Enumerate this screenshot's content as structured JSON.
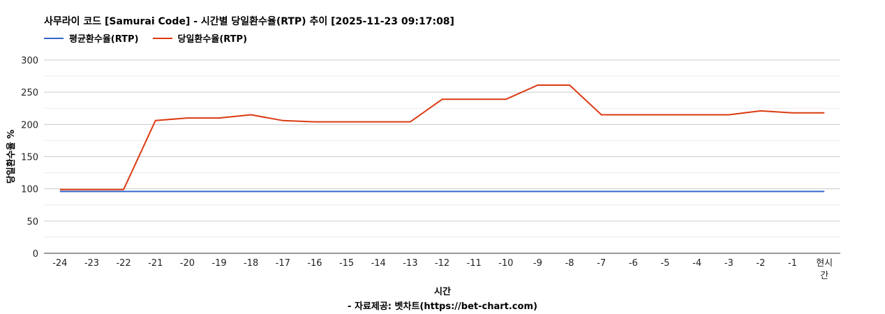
{
  "chart_data": {
    "type": "line",
    "title": "사무라이 코드 [Samurai Code] - 시간별 당일환수율(RTP) 추이 [2025-11-23 09:17:08]",
    "xlabel": "시간",
    "ylabel": "당일환수율 %",
    "source": "- 자료제공: 벳차트(https://bet-chart.com)",
    "categories": [
      "-24",
      "-23",
      "-22",
      "-21",
      "-20",
      "-19",
      "-18",
      "-17",
      "-16",
      "-15",
      "-14",
      "-13",
      "-12",
      "-11",
      "-10",
      "-9",
      "-8",
      "-7",
      "-6",
      "-5",
      "-4",
      "-3",
      "-2",
      "-1",
      "현시간"
    ],
    "ylim": [
      0,
      300
    ],
    "yticks": [
      "0",
      "50",
      "100",
      "150",
      "200",
      "250",
      "300"
    ],
    "grid": true,
    "legend": "top-left",
    "series": [
      {
        "name": "평균환수율(RTP)",
        "color": "#3366cc",
        "values": [
          96,
          96,
          96,
          96,
          96,
          96,
          96,
          96,
          96,
          96,
          96,
          96,
          96,
          96,
          96,
          96,
          96,
          96,
          96,
          96,
          96,
          96,
          96,
          96,
          96
        ]
      },
      {
        "name": "당일환수율(RTP)",
        "color": "#dc3912",
        "values": [
          99,
          99,
          99,
          206,
          210,
          210,
          215,
          206,
          204,
          204,
          204,
          204,
          239,
          239,
          239,
          261,
          261,
          215,
          215,
          215,
          215,
          215,
          221,
          218,
          218
        ]
      }
    ]
  }
}
